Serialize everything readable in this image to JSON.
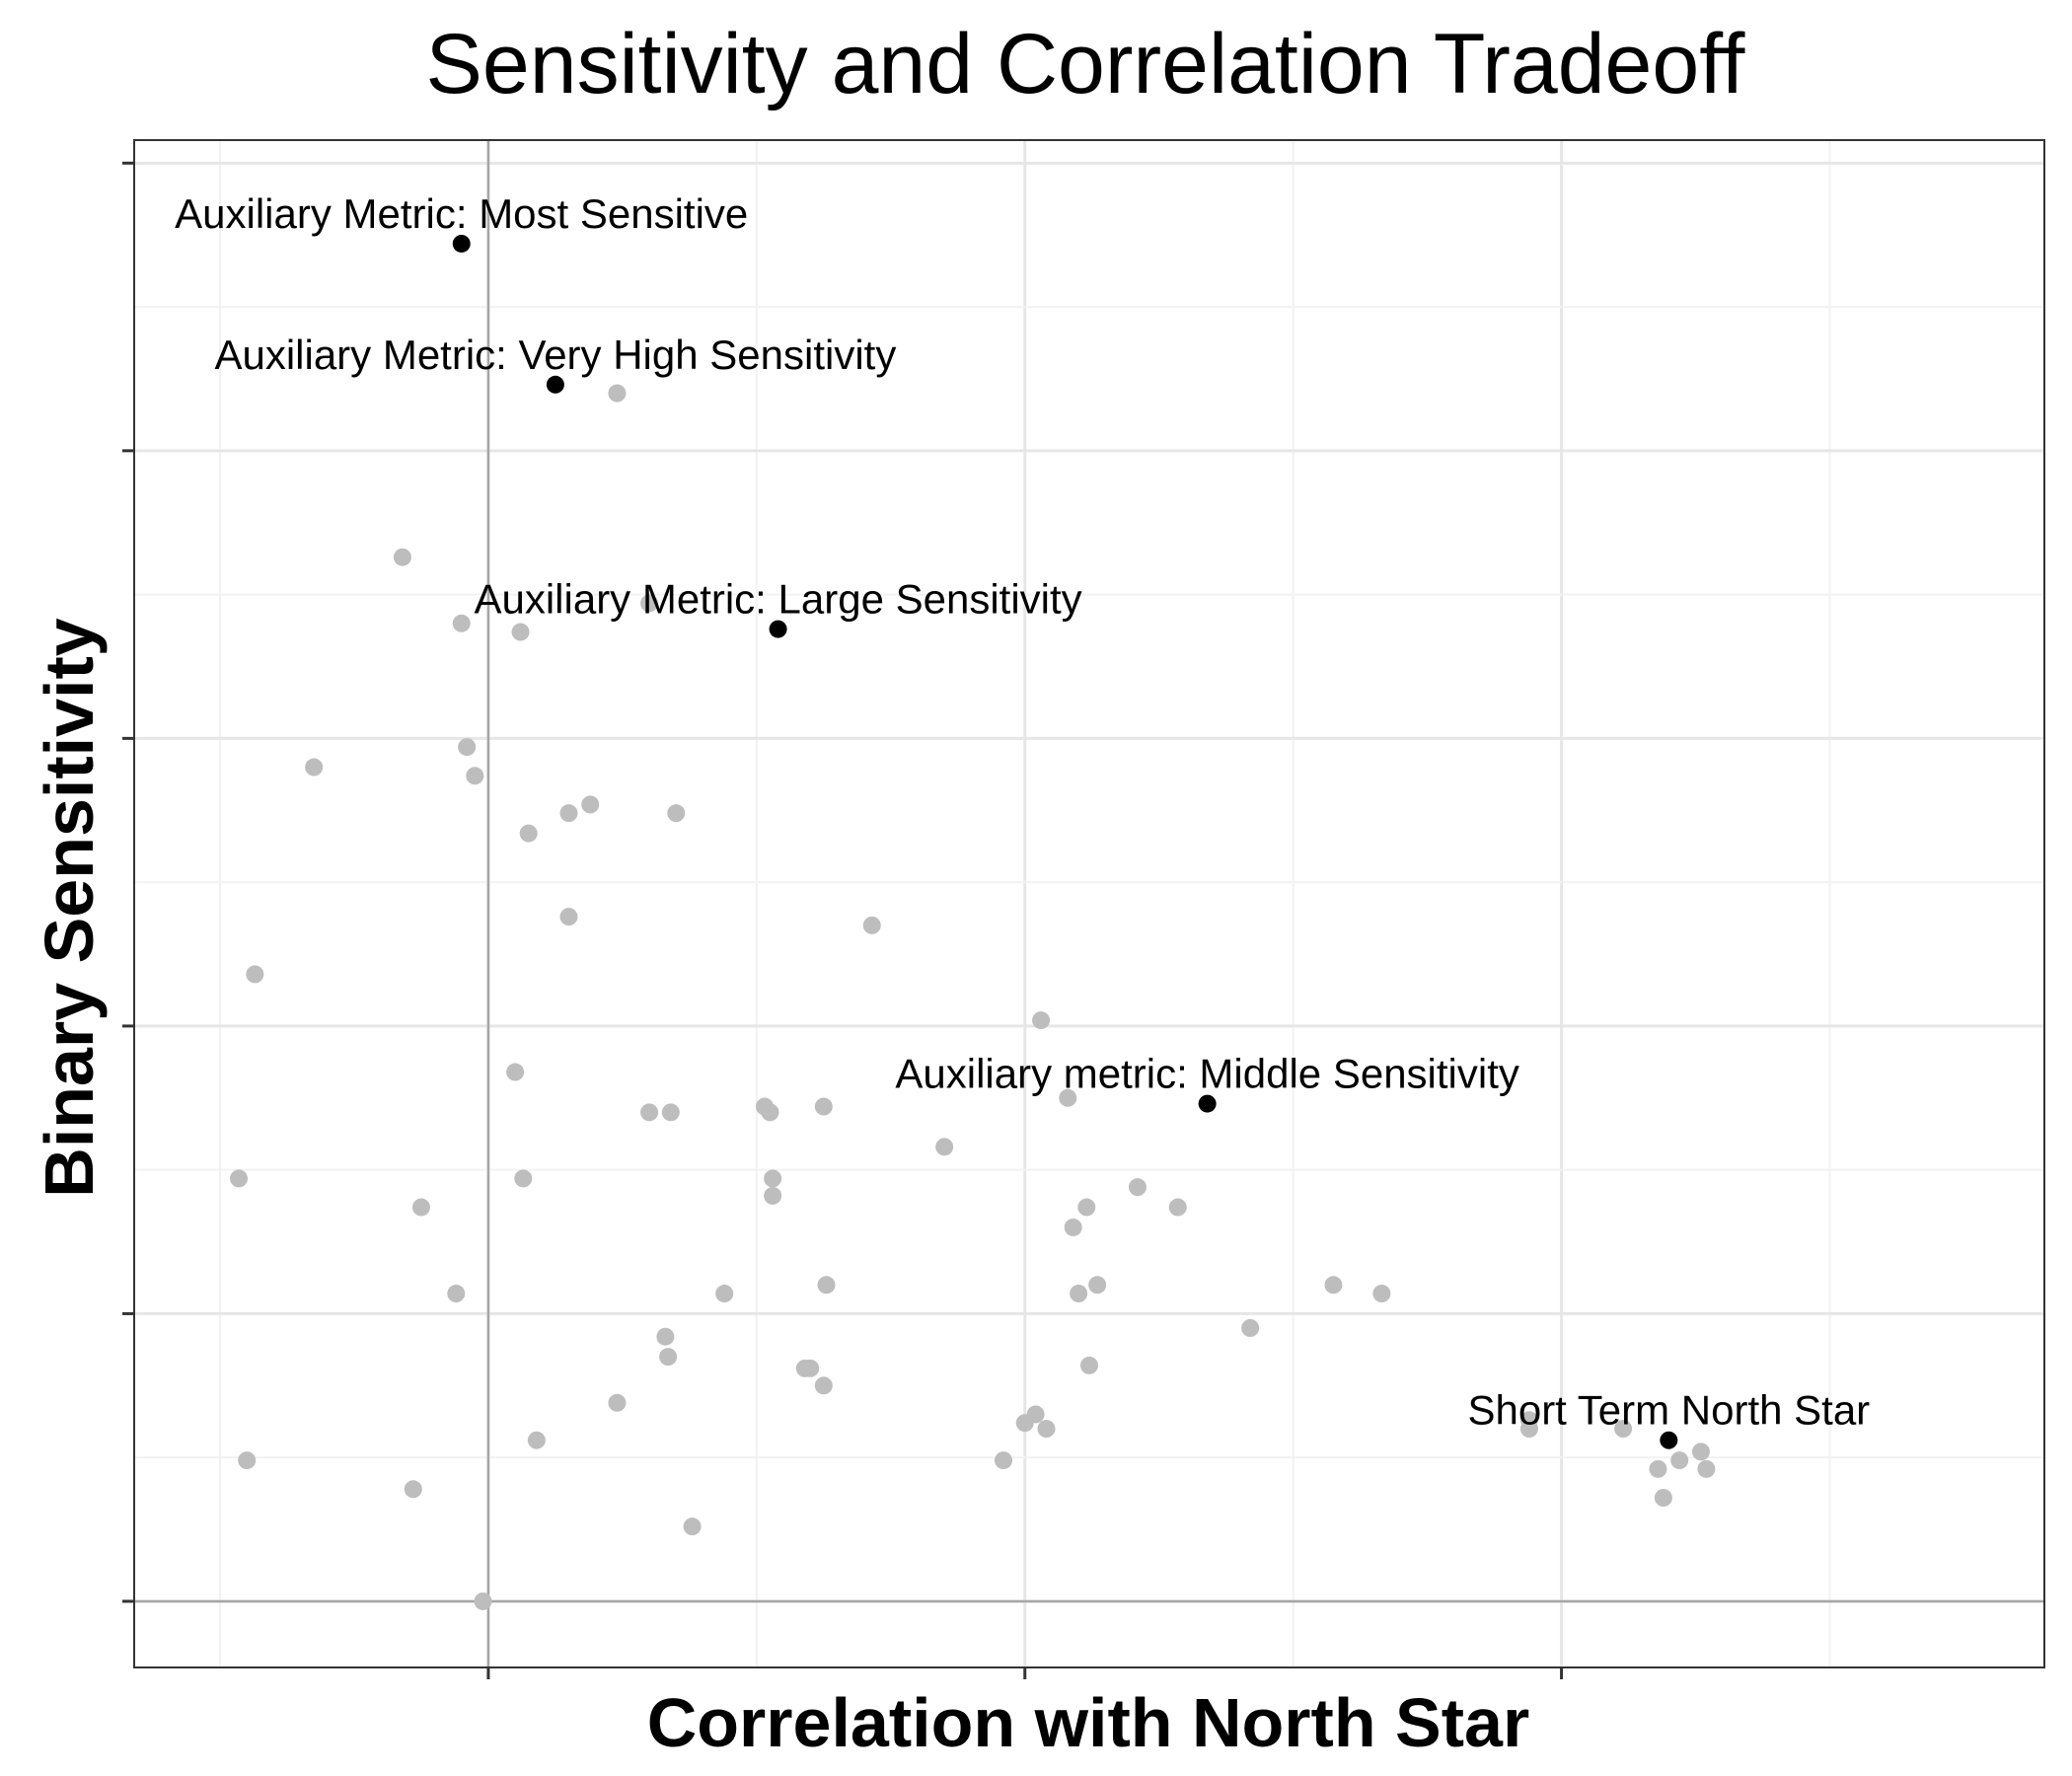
{
  "chart_data": {
    "type": "scatter",
    "title": "Sensitivity and Correlation Tradeoff",
    "xlabel": "Correlation with North Star",
    "ylabel": "Binary Sensitivity",
    "xlim": [
      -1.32,
      5.8
    ],
    "ylim": [
      -0.23,
      5.08
    ],
    "x_ticks": [
      0,
      2,
      4
    ],
    "y_ticks": [
      0,
      1,
      2,
      3,
      4,
      5
    ],
    "tick_labels_shown": false,
    "grid": true,
    "reference_lines": {
      "x": 0,
      "y": 0
    },
    "colors": {
      "background_points": "#bdbdbd",
      "highlight_points": "#000000",
      "grid_major": "#e6e6e6",
      "grid_minor": "#f2f2f2",
      "reference_line": "#a6a6a6",
      "panel_border": "#333333"
    },
    "series": [
      {
        "points": [
          [
            0.48,
            4.2
          ],
          [
            -0.32,
            3.63
          ],
          [
            -0.1,
            3.4
          ],
          [
            0.12,
            3.37
          ],
          [
            0.6,
            3.47
          ],
          [
            -0.65,
            2.9
          ],
          [
            -0.08,
            2.97
          ],
          [
            -0.05,
            2.87
          ],
          [
            0.15,
            2.67
          ],
          [
            0.3,
            2.74
          ],
          [
            0.38,
            2.77
          ],
          [
            0.7,
            2.74
          ],
          [
            -0.87,
            2.18
          ],
          [
            0.3,
            2.38
          ],
          [
            1.43,
            2.35
          ],
          [
            -0.93,
            1.47
          ],
          [
            0.1,
            1.84
          ],
          [
            0.6,
            1.7
          ],
          [
            0.68,
            1.7
          ],
          [
            1.03,
            1.72
          ],
          [
            1.05,
            1.7
          ],
          [
            1.25,
            1.72
          ],
          [
            0.13,
            1.47
          ],
          [
            -0.25,
            1.37
          ],
          [
            1.06,
            1.47
          ],
          [
            1.06,
            1.41
          ],
          [
            1.7,
            1.58
          ],
          [
            2.06,
            2.02
          ],
          [
            2.16,
            1.75
          ],
          [
            -0.12,
            1.07
          ],
          [
            0.88,
            1.07
          ],
          [
            1.26,
            1.1
          ],
          [
            0.66,
            0.92
          ],
          [
            0.67,
            0.85
          ],
          [
            1.18,
            0.81
          ],
          [
            1.2,
            0.81
          ],
          [
            1.25,
            0.75
          ],
          [
            0.48,
            0.69
          ],
          [
            0.18,
            0.56
          ],
          [
            -0.9,
            0.49
          ],
          [
            -0.28,
            0.39
          ],
          [
            0.76,
            0.26
          ],
          [
            -0.02,
            0.0
          ],
          [
            1.92,
            0.49
          ],
          [
            2.0,
            0.62
          ],
          [
            2.04,
            0.65
          ],
          [
            2.08,
            0.6
          ],
          [
            2.18,
            1.3
          ],
          [
            2.23,
            1.37
          ],
          [
            2.2,
            1.07
          ],
          [
            2.27,
            1.1
          ],
          [
            2.24,
            0.82
          ],
          [
            2.42,
            1.44
          ],
          [
            2.57,
            1.37
          ],
          [
            2.84,
            0.95
          ],
          [
            3.15,
            1.1
          ],
          [
            3.33,
            1.07
          ],
          [
            3.88,
            0.63
          ],
          [
            3.88,
            0.6
          ],
          [
            4.23,
            0.6
          ],
          [
            4.36,
            0.46
          ],
          [
            4.38,
            0.36
          ],
          [
            4.44,
            0.49
          ],
          [
            4.52,
            0.52
          ],
          [
            4.54,
            0.46
          ]
        ]
      },
      {
        "points": [
          {
            "x": -0.1,
            "y": 4.72,
            "label": "Auxiliary Metric: Most Sensitive"
          },
          {
            "x": 0.25,
            "y": 4.23,
            "label": "Auxiliary Metric: Very High Sensitivity"
          },
          {
            "x": 1.08,
            "y": 3.38,
            "label": "Auxiliary Metric: Large Sensitivity"
          },
          {
            "x": 2.68,
            "y": 1.73,
            "label": "Auxiliary metric: Middle Sensitivity"
          },
          {
            "x": 4.4,
            "y": 0.56,
            "label": "Short Term North Star"
          }
        ]
      }
    ]
  }
}
